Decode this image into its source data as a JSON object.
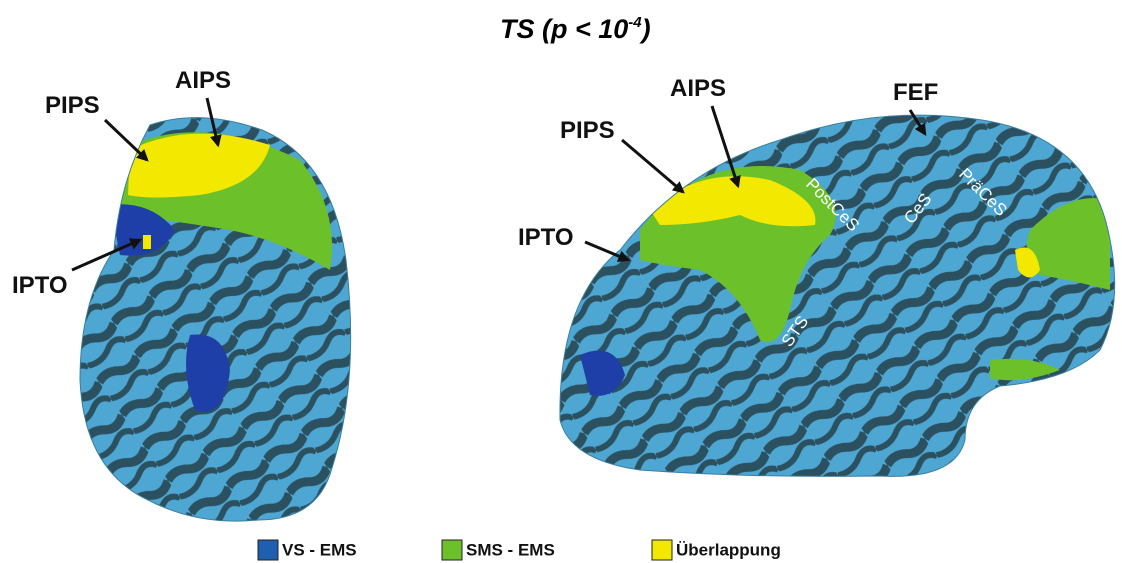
{
  "title": {
    "base": "TS (p < 10",
    "exponent": "-4",
    "close": ")"
  },
  "left_view": {
    "labels": [
      "PIPS",
      "AIPS",
      "IPTO"
    ]
  },
  "right_view": {
    "labels": [
      "PIPS",
      "AIPS",
      "IPTO",
      "FEF"
    ],
    "sulci": [
      "PostCeS",
      "CeS",
      "PräCeS",
      "STS"
    ]
  },
  "legend": [
    {
      "label": "VS - EMS",
      "color": "#1f5fb0"
    },
    {
      "label": "SMS - EMS",
      "color": "#6cc02a"
    },
    {
      "label": "Überlappung",
      "color": "#f2e800"
    }
  ]
}
